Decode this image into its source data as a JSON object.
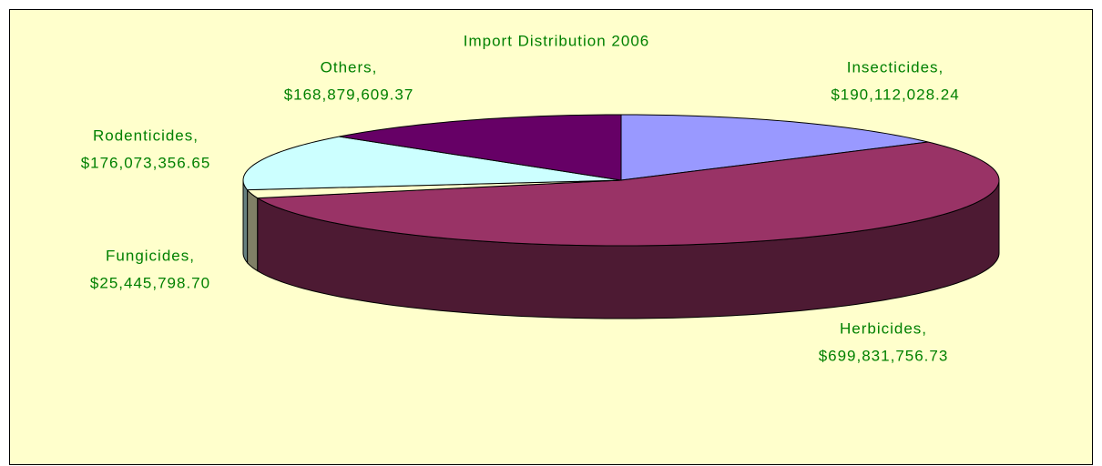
{
  "chart_data": {
    "type": "pie",
    "title": "Import Distribution 2006",
    "categories": [
      "Insecticides,",
      "Herbicides,",
      "Fungicides,",
      "Rodenticides,",
      "Others,"
    ],
    "values": [
      190112028.24,
      699831756.73,
      25445798.7,
      176073356.65,
      168879609.37
    ],
    "value_labels": [
      "$190,112,028.24",
      "$699,831,756.73",
      "$25,445,798.70",
      "$176,073,356.65",
      "$168,879,609.37"
    ],
    "colors": [
      "#9999ff",
      "#993366",
      "#ffffcc",
      "#ccffff",
      "#660066"
    ]
  }
}
